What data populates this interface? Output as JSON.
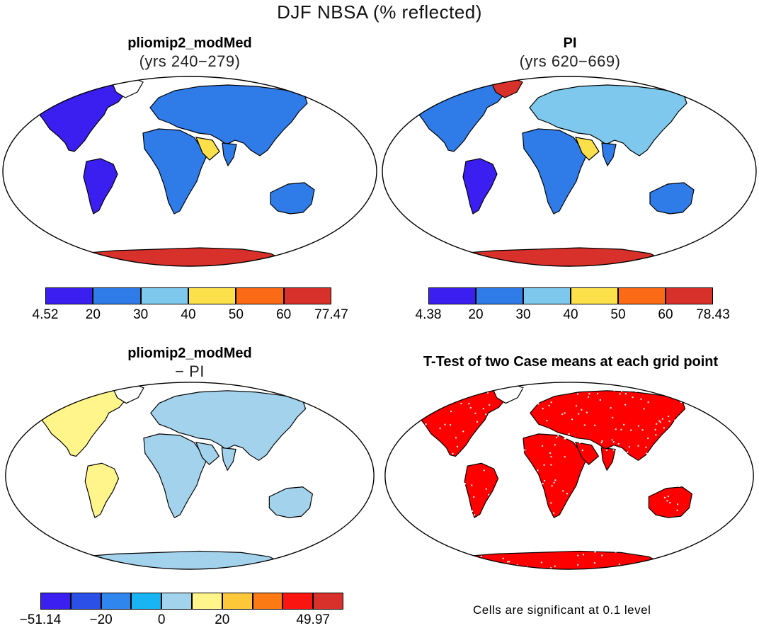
{
  "title": "DJF NBSA (% reflected)",
  "panels": [
    {
      "id": "modmed",
      "title": "pliomip2_modMed",
      "subtitle": "(yrs 240−279)",
      "colorbar": {
        "colors": [
          "#3a1ff0",
          "#2f7be8",
          "#7dc8ec",
          "#fbe04a",
          "#fb6a14",
          "#d8302a"
        ],
        "labels": [
          "4.52",
          "20",
          "30",
          "40",
          "50",
          "60",
          "77.47"
        ]
      }
    },
    {
      "id": "pi",
      "title": "PI",
      "subtitle": "(yrs 620−669)",
      "colorbar": {
        "colors": [
          "#3a1ff0",
          "#2f7be8",
          "#7dc8ec",
          "#fbe04a",
          "#fb6a14",
          "#d8302a"
        ],
        "labels": [
          "4.38",
          "20",
          "30",
          "40",
          "50",
          "60",
          "78.43"
        ]
      }
    },
    {
      "id": "diff",
      "title": "pliomip2_modMed",
      "subtitle": "− PI",
      "colorbar": {
        "colors": [
          "#3a1ff0",
          "#2a50e8",
          "#2f86ec",
          "#18b4f4",
          "#a3d2ec",
          "#fff58a",
          "#fcc83a",
          "#fb7a14",
          "#fb1510",
          "#d8302a"
        ],
        "labels": [
          "−51.14",
          "",
          "−20",
          "",
          "0",
          "",
          "20",
          "",
          "",
          "49.97"
        ]
      }
    },
    {
      "id": "ttest",
      "title": "T-Test of two Case means at each grid point",
      "note": "Cells are significant at 0.1 level"
    }
  ]
}
